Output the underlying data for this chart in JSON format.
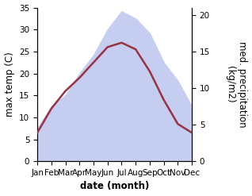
{
  "months": [
    "Jan",
    "Feb",
    "Mar",
    "Apr",
    "May",
    "Jun",
    "Jul",
    "Aug",
    "Sep",
    "Oct",
    "Nov",
    "Dec"
  ],
  "max_temp": [
    6.5,
    12.0,
    16.0,
    19.0,
    22.5,
    26.0,
    27.0,
    25.5,
    20.5,
    14.0,
    8.5,
    6.5
  ],
  "precipitation": [
    4.5,
    7.5,
    9.0,
    12.0,
    14.5,
    18.0,
    20.5,
    19.5,
    17.5,
    13.5,
    11.0,
    7.5
  ],
  "temp_color": "#993344",
  "precip_fill_color": "#c5cdf0",
  "ylabel_left": "max temp (C)",
  "ylabel_right": "med. precipitation\n(kg/m2)",
  "xlabel": "date (month)",
  "ylim_left": [
    0,
    35
  ],
  "ylim_right": [
    0,
    21
  ],
  "yticks_left": [
    0,
    5,
    10,
    15,
    20,
    25,
    30,
    35
  ],
  "yticks_right": [
    0,
    5,
    10,
    15,
    20
  ],
  "x_positions": [
    0,
    1,
    2,
    3,
    4,
    5,
    6,
    7,
    8,
    9,
    10,
    11
  ],
  "background_color": "#ffffff",
  "label_fontsize": 8.5,
  "tick_fontsize": 7.5
}
